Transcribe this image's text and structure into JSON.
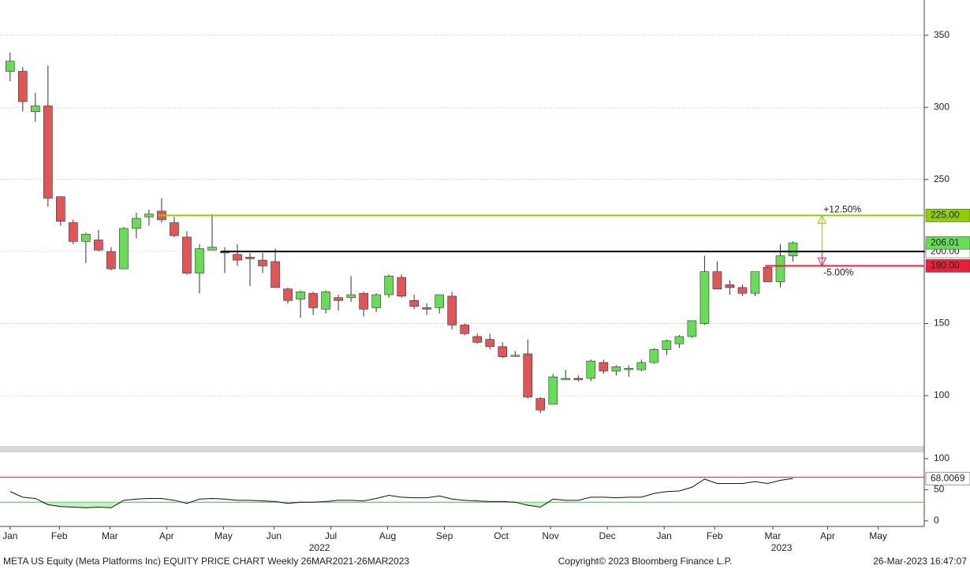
{
  "chart_data": [
    {
      "type": "candlestick",
      "up_color": "#66dd55",
      "down_color": "#e05555",
      "open": [
        325,
        325,
        297,
        301,
        238,
        220,
        207,
        208,
        200,
        188,
        216,
        224,
        228,
        220,
        210,
        185,
        201,
        200,
        198,
        196,
        194,
        193,
        174,
        167,
        171,
        160,
        168,
        168,
        171,
        161,
        170,
        182,
        166,
        161,
        161,
        169,
        149,
        141,
        139,
        134,
        128,
        129,
        98,
        94,
        111,
        112,
        112,
        123,
        117,
        118,
        118,
        123,
        132,
        136,
        141,
        150,
        186,
        177,
        175,
        171,
        189,
        179,
        197
      ],
      "high": [
        338,
        328,
        310,
        329,
        238,
        222,
        213,
        215,
        203,
        217,
        227,
        229,
        237,
        224,
        214,
        205,
        226,
        203,
        205,
        199,
        199,
        202,
        175,
        173,
        172,
        173,
        170,
        183,
        172,
        171,
        184,
        184,
        170,
        164,
        170,
        172,
        150,
        143,
        143,
        137,
        131,
        139,
        99,
        115,
        118,
        114,
        125,
        125,
        121,
        121,
        125,
        133,
        139,
        142,
        152,
        197,
        193,
        180,
        177,
        186,
        190,
        205,
        207
      ],
      "low": [
        318,
        297,
        290,
        231,
        218,
        205,
        192,
        200,
        187,
        188,
        209,
        218,
        220,
        210,
        184,
        171,
        201,
        185,
        190,
        176,
        185,
        175,
        164,
        154,
        156,
        157,
        159,
        165,
        155,
        158,
        168,
        168,
        160,
        156,
        157,
        146,
        142,
        136,
        132,
        126,
        127,
        98,
        88,
        94,
        111,
        110,
        110,
        115,
        114,
        113,
        117,
        122,
        128,
        133,
        140,
        149,
        174,
        170,
        169,
        169,
        179,
        175,
        193
      ],
      "close": [
        332,
        304,
        301,
        237,
        221,
        207,
        212,
        201,
        188,
        216,
        223,
        226,
        222,
        211,
        185,
        202,
        203,
        199,
        194,
        195,
        190,
        175,
        166,
        172,
        161,
        172,
        166,
        170,
        160,
        170,
        183,
        169,
        162,
        160,
        170,
        149,
        143,
        137,
        134,
        127,
        128,
        99,
        90,
        113,
        112,
        111,
        124,
        117,
        120,
        119,
        123,
        132,
        138,
        141,
        152,
        186,
        174,
        175,
        171,
        186,
        179,
        197,
        206.01
      ],
      "xlim": [
        -0.8,
        72.4
      ],
      "ylim": [
        65,
        374.5
      ],
      "yticks": [
        100,
        150,
        200,
        250,
        300,
        350
      ],
      "grid": true,
      "levels": [
        {
          "value": 225,
          "label": "225.00",
          "change": "+12.50%",
          "color": "#8fce00",
          "x_start": 11.7
        },
        {
          "value": 200,
          "label": "200.00",
          "color": "#000000",
          "x_start": 16.7
        },
        {
          "value": 190,
          "label": "190.00",
          "change": "-5.00%",
          "color": "#e8203a",
          "x_start": 59.8
        }
      ]
    },
    {
      "type": "line",
      "color": "#111111",
      "values": [
        47,
        38,
        36,
        26,
        23,
        22,
        21,
        22,
        21,
        33,
        35,
        36,
        36,
        33,
        28,
        35,
        36,
        35,
        33,
        33,
        32,
        31,
        28,
        30,
        30,
        31,
        33,
        33,
        32,
        36,
        41,
        38,
        37,
        37,
        40,
        35,
        33,
        32,
        31,
        31,
        30,
        25,
        22,
        35,
        33,
        33,
        38,
        38,
        37,
        38,
        38,
        44,
        47,
        48,
        54,
        67,
        60,
        60,
        60,
        63,
        60,
        65,
        68.0069
      ],
      "xlim": [
        -0.8,
        72.4
      ],
      "ylim": [
        -9,
        110
      ],
      "yticks": [
        0,
        50,
        100
      ],
      "upper": 70,
      "lower": 30,
      "upper_color": "#e02020",
      "lower_color": "#44bb44",
      "xticks": [
        {
          "value": 0,
          "label": "Jan"
        },
        {
          "value": 3.9,
          "label": "Feb"
        },
        {
          "value": 7.9,
          "label": "Mar"
        },
        {
          "value": 12.4,
          "label": "Apr"
        },
        {
          "value": 16.9,
          "label": "May"
        },
        {
          "value": 20.9,
          "label": "Jun"
        },
        {
          "value": 25.4,
          "label": "Jul"
        },
        {
          "value": 29.9,
          "label": "Aug"
        },
        {
          "value": 34.4,
          "label": "Sep"
        },
        {
          "value": 38.9,
          "label": "Oct"
        },
        {
          "value": 42.8,
          "label": "Nov"
        },
        {
          "value": 47.3,
          "label": "Dec"
        },
        {
          "value": 51.8,
          "label": "Jan"
        },
        {
          "value": 55.8,
          "label": "Feb"
        },
        {
          "value": 60.4,
          "label": "Mar"
        },
        {
          "value": 64.75,
          "label": "Apr"
        },
        {
          "value": 68.75,
          "label": "May"
        }
      ],
      "years": [
        {
          "value": 24.5,
          "label": "2022"
        },
        {
          "value": 61.1,
          "label": "2023"
        }
      ]
    }
  ],
  "footer": {
    "left": "META US Equity (Meta Platforms Inc) EQUITY PRICE CHART  Weekly 26MAR2021-26MAR2023",
    "center": "Copyright© 2023 Bloomberg Finance L.P.",
    "right": "26-Mar-2023 16:47:07"
  }
}
